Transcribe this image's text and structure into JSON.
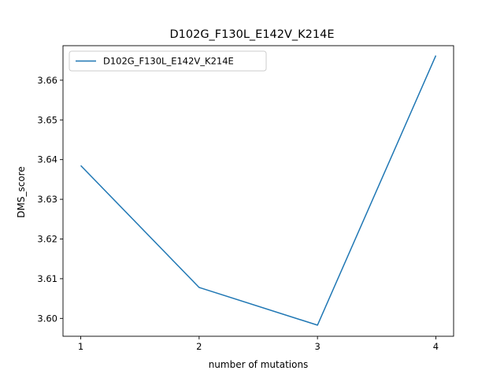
{
  "chart_data": {
    "type": "line",
    "title": "D102G_F130L_E142V_K214E",
    "xlabel": "number of mutations",
    "ylabel": "DMS_score",
    "x": [
      1,
      2,
      3,
      4
    ],
    "xticks": [
      "1",
      "2",
      "3",
      "4"
    ],
    "yticks": [
      "3.60",
      "3.61",
      "3.62",
      "3.63",
      "3.64",
      "3.65",
      "3.66"
    ],
    "ylim": [
      3.5955,
      3.6687
    ],
    "xlim": [
      0.85,
      4.15
    ],
    "grid": false,
    "legend_position": "top-left",
    "series": [
      {
        "name": "D102G_F130L_E142V_K214E",
        "color": "#1f77b4",
        "values": [
          3.6385,
          3.6078,
          3.5983,
          3.6662
        ]
      }
    ]
  }
}
